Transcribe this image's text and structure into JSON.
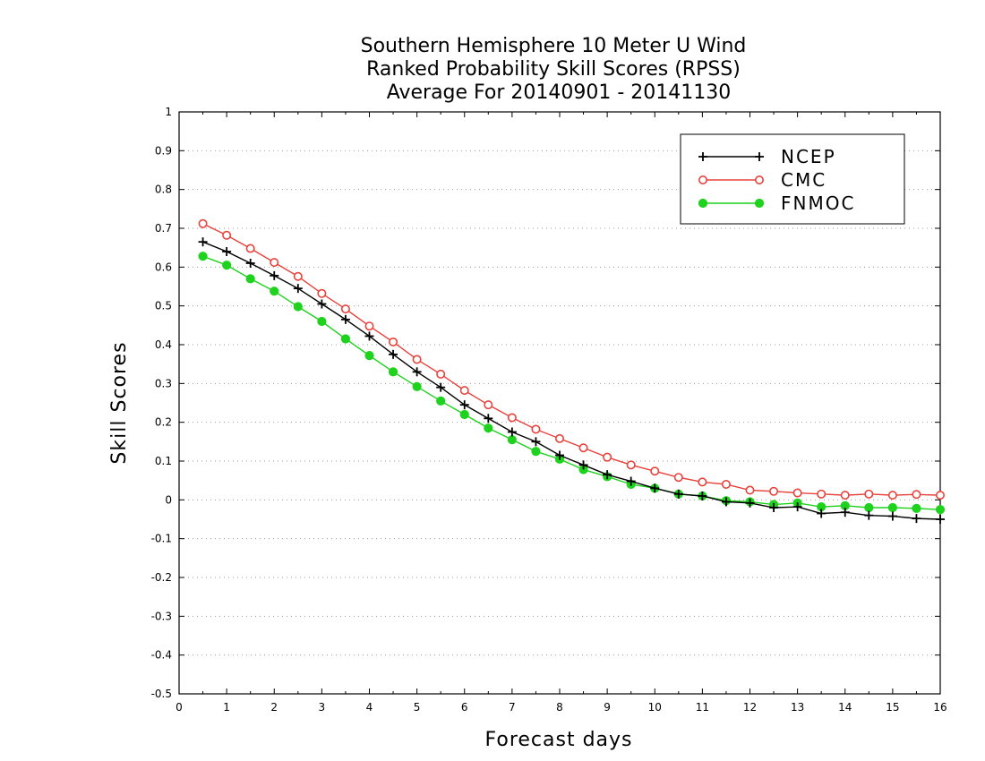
{
  "chart_data": {
    "type": "line",
    "title": [
      "Southern Hemisphere 10 Meter U Wind",
      "Ranked Probability Skill Scores (RPSS)",
      "Average For 20140901 - 20141130"
    ],
    "xlabel": "Forecast days",
    "ylabel": "Skill Scores",
    "xlim": [
      0,
      16
    ],
    "ylim": [
      -0.5,
      1
    ],
    "x_ticks": [
      "0",
      "1",
      "2",
      "3",
      "4",
      "5",
      "6",
      "7",
      "8",
      "9",
      "10",
      "11",
      "12",
      "13",
      "14",
      "15",
      "16"
    ],
    "y_ticks": [
      "1",
      "0.9",
      "0.8",
      "0.7",
      "0.6",
      "0.5",
      "0.4",
      "0.3",
      "0.2",
      "0.1",
      "0",
      "-0.1",
      "-0.2",
      "-0.3",
      "-0.4",
      "-0.5"
    ],
    "grid": "horizontal dotted",
    "legend_position": "top-right",
    "x": [
      0.5,
      1,
      1.5,
      2,
      2.5,
      3,
      3.5,
      4,
      4.5,
      5,
      5.5,
      6,
      6.5,
      7,
      7.5,
      8,
      8.5,
      9,
      9.5,
      10,
      10.5,
      11,
      11.5,
      12,
      12.5,
      13,
      13.5,
      14,
      14.5,
      15,
      15.5,
      16
    ],
    "series": [
      {
        "name": "NCEP",
        "color": "#000000",
        "marker": "plus",
        "values": [
          0.665,
          0.64,
          0.61,
          0.578,
          0.545,
          0.505,
          0.465,
          0.422,
          0.375,
          0.33,
          0.29,
          0.245,
          0.21,
          0.175,
          0.15,
          0.115,
          0.09,
          0.065,
          0.048,
          0.03,
          0.015,
          0.01,
          -0.005,
          -0.008,
          -0.02,
          -0.018,
          -0.035,
          -0.032,
          -0.04,
          -0.042,
          -0.048,
          -0.05
        ]
      },
      {
        "name": "CMC",
        "color": "#e8423c",
        "marker": "open-circle",
        "values": [
          0.712,
          0.682,
          0.648,
          0.612,
          0.576,
          0.532,
          0.492,
          0.448,
          0.407,
          0.362,
          0.324,
          0.282,
          0.245,
          0.212,
          0.182,
          0.158,
          0.134,
          0.11,
          0.09,
          0.074,
          0.058,
          0.046,
          0.04,
          0.025,
          0.022,
          0.018,
          0.015,
          0.012,
          0.015,
          0.012,
          0.014,
          0.012
        ]
      },
      {
        "name": "FNMOC",
        "color": "#1ed21e",
        "marker": "filled-circle",
        "values": [
          0.628,
          0.605,
          0.57,
          0.538,
          0.498,
          0.46,
          0.415,
          0.372,
          0.33,
          0.292,
          0.255,
          0.22,
          0.185,
          0.155,
          0.125,
          0.105,
          0.078,
          0.06,
          0.04,
          0.03,
          0.015,
          0.01,
          -0.002,
          -0.005,
          -0.012,
          -0.008,
          -0.018,
          -0.015,
          -0.02,
          -0.02,
          -0.022,
          -0.025
        ]
      }
    ]
  }
}
